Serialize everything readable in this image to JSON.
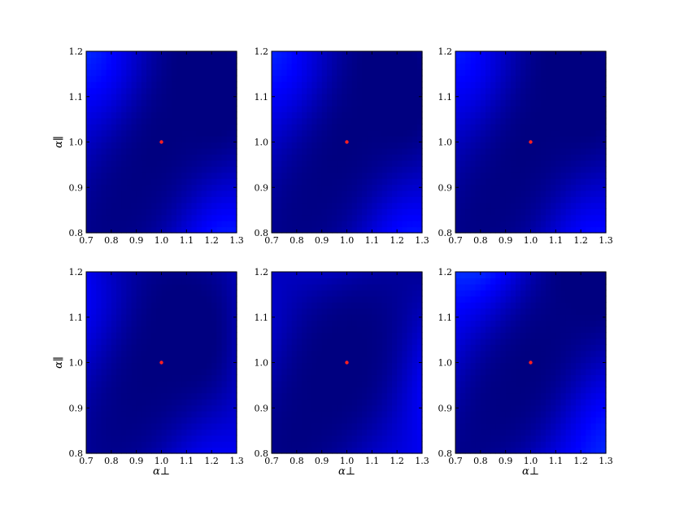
{
  "chart_data": [
    {
      "type": "heatmap",
      "title": "",
      "xlabel": "",
      "ylabel": "α∥",
      "xlim": [
        0.7,
        1.3
      ],
      "ylim": [
        0.8,
        1.2
      ],
      "xticks": [
        "0.7",
        "0.8",
        "0.9",
        "1.0",
        "1.1",
        "1.2",
        "1.3"
      ],
      "yticks": [
        "0.8",
        "0.9",
        "1.0",
        "1.1",
        "1.2"
      ],
      "grid": false,
      "colormap": "jet",
      "marker": {
        "x": 1.0,
        "y": 1.0,
        "color": "#ff2020"
      },
      "minimum": {
        "x": 1.0,
        "y": 1.0
      },
      "surface": {
        "sxx": 0.065,
        "syy": 0.045,
        "sxy": 0.04,
        "scale": 0.55,
        "ox": 0.0,
        "oy": 0.0
      },
      "contours": [
        {
          "level": 0.22,
          "color": "#ffffcc"
        },
        {
          "level": 0.52,
          "color": "#6a0e1a"
        }
      ]
    },
    {
      "type": "heatmap",
      "title": "",
      "xlabel": "",
      "ylabel": "",
      "xlim": [
        0.7,
        1.3
      ],
      "ylim": [
        0.8,
        1.2
      ],
      "xticks": [
        "0.7",
        "0.8",
        "0.9",
        "1.0",
        "1.1",
        "1.2",
        "1.3"
      ],
      "yticks": [
        "0.8",
        "0.9",
        "1.0",
        "1.1",
        "1.2"
      ],
      "grid": false,
      "colormap": "jet",
      "marker": {
        "x": 1.0,
        "y": 1.0,
        "color": "#ff2020"
      },
      "minimum": {
        "x": 1.0,
        "y": 1.0
      },
      "surface": {
        "sxx": 0.07,
        "syy": 0.05,
        "sxy": 0.04,
        "scale": 0.72,
        "ox": 0.0,
        "oy": 0.0
      },
      "contours": [
        {
          "level": 0.22,
          "color": "#ffffcc"
        },
        {
          "level": 0.52,
          "color": "#6a0e1a"
        }
      ]
    },
    {
      "type": "heatmap",
      "title": "",
      "xlabel": "",
      "ylabel": "",
      "xlim": [
        0.7,
        1.3
      ],
      "ylim": [
        0.8,
        1.2
      ],
      "xticks": [
        "0.7",
        "0.8",
        "0.9",
        "1.0",
        "1.1",
        "1.2",
        "1.3"
      ],
      "yticks": [
        "0.8",
        "0.9",
        "1.0",
        "1.1",
        "1.2"
      ],
      "grid": false,
      "colormap": "jet",
      "marker": {
        "x": 1.0,
        "y": 1.0,
        "color": "#ff2020"
      },
      "minimum": {
        "x": 1.0,
        "y": 1.0
      },
      "surface": {
        "sxx": 0.063,
        "syy": 0.045,
        "sxy": 0.039,
        "scale": 0.5,
        "ox": 0.0,
        "oy": 0.0
      },
      "contours": [
        {
          "level": 0.22,
          "color": "#ffffcc"
        },
        {
          "level": 0.52,
          "color": "#6a0e1a"
        }
      ]
    },
    {
      "type": "heatmap",
      "title": "",
      "xlabel": "α⊥",
      "ylabel": "α∥",
      "xlim": [
        0.7,
        1.3
      ],
      "ylim": [
        0.8,
        1.2
      ],
      "xticks": [
        "0.7",
        "0.8",
        "0.9",
        "1.0",
        "1.1",
        "1.2",
        "1.3"
      ],
      "yticks": [
        "0.8",
        "0.9",
        "1.0",
        "1.1",
        "1.2"
      ],
      "grid": false,
      "colormap": "jet",
      "marker": {
        "x": 1.0,
        "y": 1.0,
        "color": "#ff2020"
      },
      "minimum": {
        "x": 0.97,
        "y": 1.0
      },
      "surface": {
        "sxx": 0.085,
        "syy": 0.06,
        "sxy": 0.045,
        "scale": 1.0,
        "ox": 0.6,
        "oy": 0.45
      },
      "contours": [
        {
          "level": 0.22,
          "color": "#ffffcc"
        },
        {
          "level": 0.52,
          "color": "#6a0e1a"
        }
      ]
    },
    {
      "type": "heatmap",
      "title": "",
      "xlabel": "α⊥",
      "ylabel": "",
      "xlim": [
        0.7,
        1.3
      ],
      "ylim": [
        0.8,
        1.2
      ],
      "xticks": [
        "0.7",
        "0.8",
        "0.9",
        "1.0",
        "1.1",
        "1.2",
        "1.3"
      ],
      "yticks": [
        "0.8",
        "0.9",
        "1.0",
        "1.1",
        "1.2"
      ],
      "grid": false,
      "colormap": "jet",
      "marker": {
        "x": 1.0,
        "y": 1.0,
        "color": "#ff2020"
      },
      "minimum": {
        "x": 0.98,
        "y": 1.0
      },
      "surface": {
        "sxx": 0.09,
        "syy": 0.06,
        "sxy": 0.045,
        "scale": 1.0,
        "ox": 1.6,
        "oy": 1.1
      },
      "contours": [
        {
          "level": 0.22,
          "color": "#ffffcc"
        },
        {
          "level": 0.52,
          "color": "#6a0e1a"
        }
      ]
    },
    {
      "type": "heatmap",
      "title": "",
      "xlabel": "α⊥",
      "ylabel": "",
      "xlim": [
        0.7,
        1.3
      ],
      "ylim": [
        0.8,
        1.2
      ],
      "xticks": [
        "0.7",
        "0.8",
        "0.9",
        "1.0",
        "1.1",
        "1.2",
        "1.3"
      ],
      "yticks": [
        "0.8",
        "0.9",
        "1.0",
        "1.1",
        "1.2"
      ],
      "grid": false,
      "colormap": "jet",
      "marker": {
        "x": 1.0,
        "y": 1.0,
        "color": "#ff2020"
      },
      "minimum": {
        "x": 1.0,
        "y": 1.0
      },
      "surface": {
        "sxx": 0.065,
        "syy": 0.045,
        "sxy": 0.035,
        "scale": 0.85,
        "ox": 2.7,
        "oy": 2.2
      },
      "contours": [
        {
          "level": 0.22,
          "color": "#ffffcc"
        },
        {
          "level": 0.52,
          "color": "#6a0e1a"
        }
      ]
    }
  ]
}
